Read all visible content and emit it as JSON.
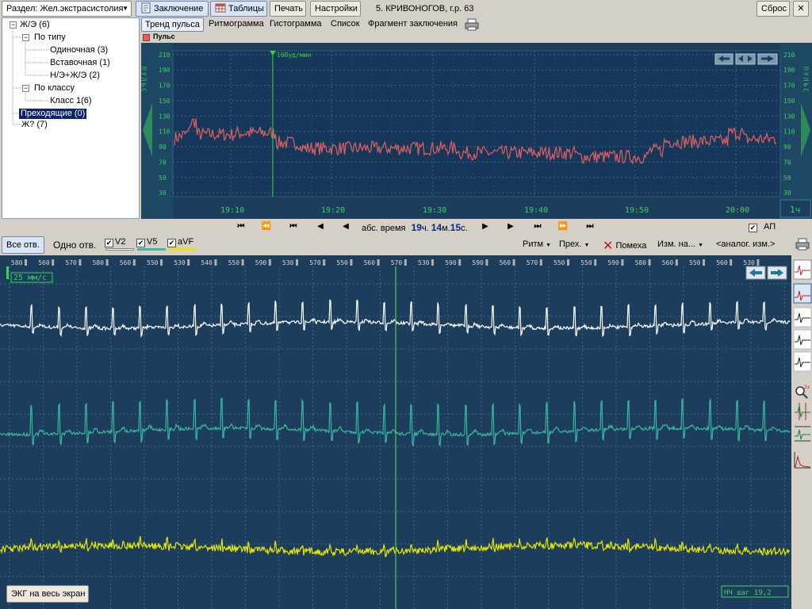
{
  "toolbar": {
    "section_label": "Раздел: Жел.экстрасистолия",
    "conclusion": "Заключение",
    "tables": "Таблицы",
    "print": "Печать",
    "settings": "Настройки",
    "patient": "5. КРИВОНОГОВ, г.р. 63",
    "reset": "Сброс"
  },
  "tree": {
    "root": "Ж/Э (6)",
    "by_type": "По типу",
    "single": "Одиночная  (3)",
    "inserted": "Вставочная  (1)",
    "nzh": "Н/Э+Ж/Э  (2)",
    "by_class": "По классу",
    "class1": "Класс 1(6)",
    "transient": "Преходящие (0)",
    "zh_question": "Ж? (7)"
  },
  "tabs": [
    "Тренд пульса",
    "Ритмограмма",
    "Гистограмма",
    "Список",
    "Фрагмент заключения"
  ],
  "trend": {
    "legend": "Пульс",
    "side_label": "ПУЛЬС",
    "y_ticks": [
      210,
      190,
      170,
      150,
      130,
      110,
      90,
      70,
      50,
      30
    ],
    "x_ticks": [
      "19:10",
      "19:20",
      "19:30",
      "19:40",
      "19:50",
      "20:00"
    ],
    "marker_label": "108уд/мин",
    "scale": "1ч"
  },
  "nav": {
    "abs_time_label": "абс. время",
    "hours": "19",
    "hours_unit": "ч.",
    "minutes": "14",
    "minutes_unit": "м.",
    "seconds": "15",
    "seconds_unit": "с.",
    "ap_label": "АП"
  },
  "ecg_toolbar": {
    "all_leads": "Все отв.",
    "one_lead": "Одно отв.",
    "leads": [
      {
        "name": "V2",
        "color": "#ffffff"
      },
      {
        "name": "V5",
        "color": "#3ab7a0"
      },
      {
        "name": "aVF",
        "color": "#e6e600"
      }
    ],
    "rhythm": "Ритм",
    "transient": "Прех.",
    "noise": "Помеха",
    "measure": "Изм. на...",
    "analog": "<аналог. изм.>"
  },
  "ecg": {
    "speed": "25 мм/с",
    "rr_labels": [
      "580",
      "560",
      "570",
      "580",
      "560",
      "550",
      "530",
      "540",
      "550",
      "590",
      "530",
      "570",
      "550",
      "560",
      "570",
      "530",
      "590",
      "590",
      "560",
      "570",
      "550",
      "550",
      "590",
      "580",
      "560",
      "550",
      "560",
      "530"
    ],
    "fullscreen_button": "ЭКГ на весь экран",
    "hf_label": "НЧ шаг 19,2"
  },
  "sidebar_icons": [
    "view-icon",
    "edit-icon",
    "beat-icon",
    "ordered-icon",
    "classes-icon",
    "zoom-icon",
    "compare-icon",
    "measure-icon",
    "spectrum-icon"
  ]
}
